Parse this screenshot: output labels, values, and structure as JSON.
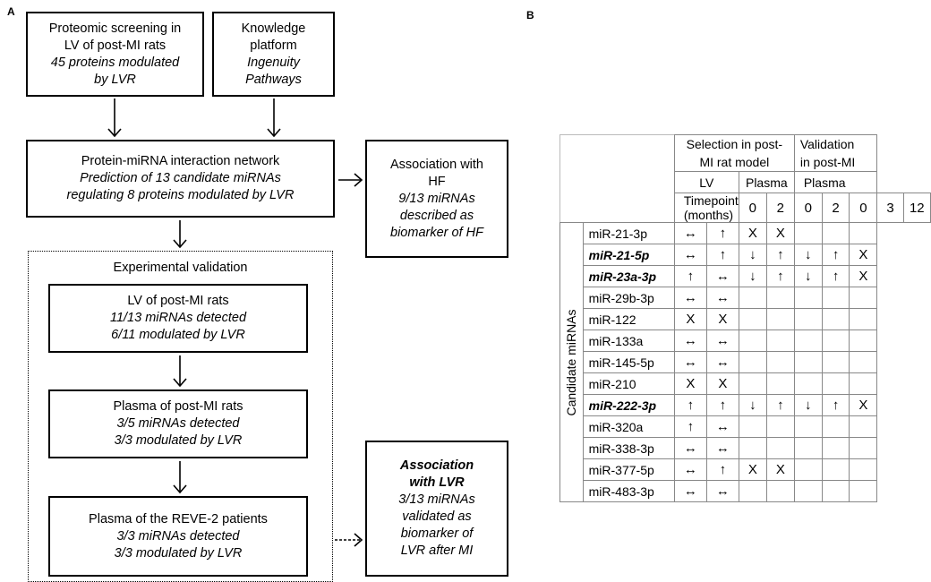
{
  "panel_a_label": "A",
  "panel_b_label": "B",
  "boxes": {
    "proteomic": {
      "line1": "Proteomic screening in",
      "line2": "LV of post-MI rats",
      "line3": "45 proteins modulated",
      "line4": "by LVR"
    },
    "knowledge": {
      "line1": "Knowledge",
      "line2": "platform",
      "line3": "Ingenuity",
      "line4": "Pathways"
    },
    "network": {
      "line1": "Protein-miRNA interaction network",
      "line2": "Prediction of 13 candidate miRNAs",
      "line3": "regulating 8 proteins modulated by LVR"
    },
    "hf": {
      "line1": "Association with",
      "line2": "HF",
      "line3": "9/13 miRNAs",
      "line4": "described as",
      "line5": "biomarker of HF"
    },
    "exp_title": "Experimental validation",
    "lv": {
      "line1": "LV of post-MI rats",
      "line2": "11/13 miRNAs detected",
      "line3": "6/11 modulated by LVR"
    },
    "plasma_rats": {
      "line1": "Plasma of post-MI rats",
      "line2": "3/5 miRNAs detected",
      "line3": "3/3 modulated by LVR"
    },
    "reve": {
      "line1": "Plasma of the REVE-2 patients",
      "line2": "3/3 miRNAs detected",
      "line3": "3/3 modulated by LVR"
    },
    "lvr": {
      "line1": "Association",
      "line2": "with LVR",
      "line3": "3/13 miRNAs",
      "line4": "validated as",
      "line5": "biomarker of",
      "line6": "LVR after MI"
    }
  },
  "table": {
    "header_sel1": "Selection in post-",
    "header_sel2": "MI rat model",
    "header_val1": "Validation",
    "header_val2": "in post-MI",
    "lv": "LV",
    "plasma": "Plasma",
    "plasma2": "Plasma",
    "timepoint": "Timepoint (months)",
    "tp": [
      "0",
      "2",
      "0",
      "2",
      "0",
      "3",
      "12"
    ],
    "row_group": "Candidate miRNAs",
    "rows": [
      {
        "name": "miR-21-3p",
        "vals": [
          "↔",
          "↑",
          "X",
          "X",
          "",
          "",
          ""
        ]
      },
      {
        "name": "miR-21-5p",
        "vals": [
          "↔",
          "↑",
          "↓",
          "↑",
          "↓",
          "↑",
          "X"
        ]
      },
      {
        "name": "miR-23a-3p",
        "vals": [
          "↑",
          "↔",
          "↓",
          "↑",
          "↓",
          "↑",
          "X"
        ]
      },
      {
        "name": "miR-29b-3p",
        "vals": [
          "↔",
          "↔",
          "",
          "",
          "",
          "",
          ""
        ]
      },
      {
        "name": "miR-122",
        "vals": [
          "X",
          "X",
          "",
          "",
          "",
          "",
          ""
        ]
      },
      {
        "name": "miR-133a",
        "vals": [
          "↔",
          "↔",
          "",
          "",
          "",
          "",
          ""
        ]
      },
      {
        "name": "miR-145-5p",
        "vals": [
          "↔",
          "↔",
          "",
          "",
          "",
          "",
          ""
        ]
      },
      {
        "name": "miR-210",
        "vals": [
          "X",
          "X",
          "",
          "",
          "",
          "",
          ""
        ]
      },
      {
        "name": "miR-222-3p",
        "vals": [
          "↑",
          "↑",
          "↓",
          "↑",
          "↓",
          "↑",
          "X"
        ]
      },
      {
        "name": "miR-320a",
        "vals": [
          "↑",
          "↔",
          "",
          "",
          "",
          "",
          ""
        ]
      },
      {
        "name": "miR-338-3p",
        "vals": [
          "↔",
          "↔",
          "",
          "",
          "",
          "",
          ""
        ]
      },
      {
        "name": "miR-377-5p",
        "vals": [
          "↔",
          "↑",
          "X",
          "X",
          "",
          "",
          ""
        ]
      },
      {
        "name": "miR-483-3p",
        "vals": [
          "↔",
          "↔",
          "",
          "",
          "",
          "",
          ""
        ]
      }
    ]
  }
}
